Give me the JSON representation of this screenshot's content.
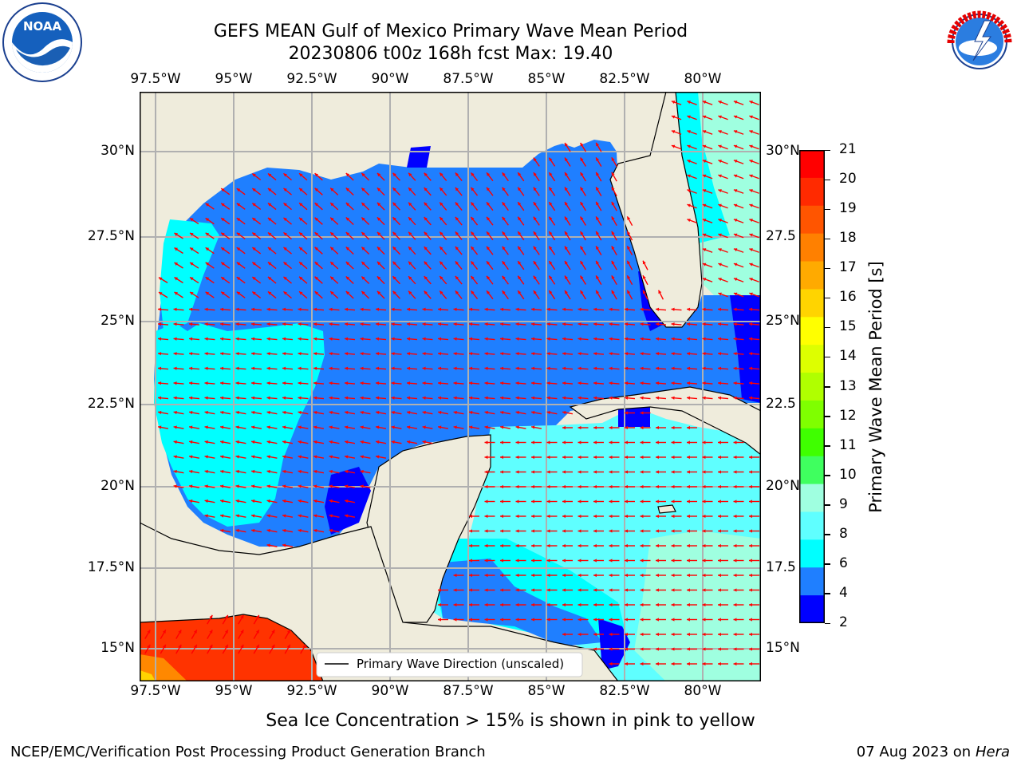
{
  "title": {
    "line1": "GEFS MEAN Gulf of Mexico Primary Wave Mean Period",
    "line2": "20230806 t00z 168h fcst   Max: 19.40"
  },
  "logos": {
    "left": {
      "icon": "noaa-logo-icon",
      "text": "NOAA"
    },
    "right": {
      "icon": "nws-logo-icon",
      "text": "NATIONAL WEATHER SERVICE"
    }
  },
  "map": {
    "lon_ticks": [
      "97.5°W",
      "95°W",
      "92.5°W",
      "90°W",
      "87.5°W",
      "85°W",
      "82.5°W",
      "80°W"
    ],
    "lat_ticks_left": [
      "30°N",
      "27.5°N",
      "25°N",
      "22.5°N",
      "20°N",
      "17.5°N",
      "15°N"
    ],
    "lat_ticks_right": [
      "30°N",
      "27.5",
      "25°N",
      "22.5",
      "20°N",
      "17.5",
      "15°N"
    ],
    "legend_label": "Primary Wave Direction (unscaled)",
    "colors": {
      "land": "#efecdc",
      "ocean_4_6": "#1f7fff",
      "ocean_2_4": "#0000ff",
      "ocean_6_8": "#00ffff",
      "ocean_8_9": "#5fffff",
      "ocean_9_10": "#9fffe0",
      "high_period": "#ff3300",
      "arrow": "#ff0000"
    }
  },
  "colorbar": {
    "label": "Primary Wave Mean Period [s]",
    "ticks": [
      "21",
      "20",
      "19",
      "18",
      "17",
      "16",
      "15",
      "14",
      "13",
      "12",
      "11",
      "10",
      "9",
      "8",
      "6",
      "4",
      "2"
    ],
    "colors": [
      "#ff0000",
      "#ff2a00",
      "#ff5500",
      "#ff8000",
      "#ffaa00",
      "#ffd400",
      "#ffff00",
      "#ddff00",
      "#b0ff00",
      "#7fff00",
      "#3fff00",
      "#3fff5f",
      "#9fffe0",
      "#5fffff",
      "#00ffff",
      "#1f7fff",
      "#0000ff"
    ]
  },
  "note": "Sea Ice Concentration > 15% is shown in pink to yellow",
  "footer": {
    "left": "NCEP/EMC/Verification Post Processing Product Generation Branch",
    "date": "07 Aug 2023 on",
    "host": "Hera"
  }
}
